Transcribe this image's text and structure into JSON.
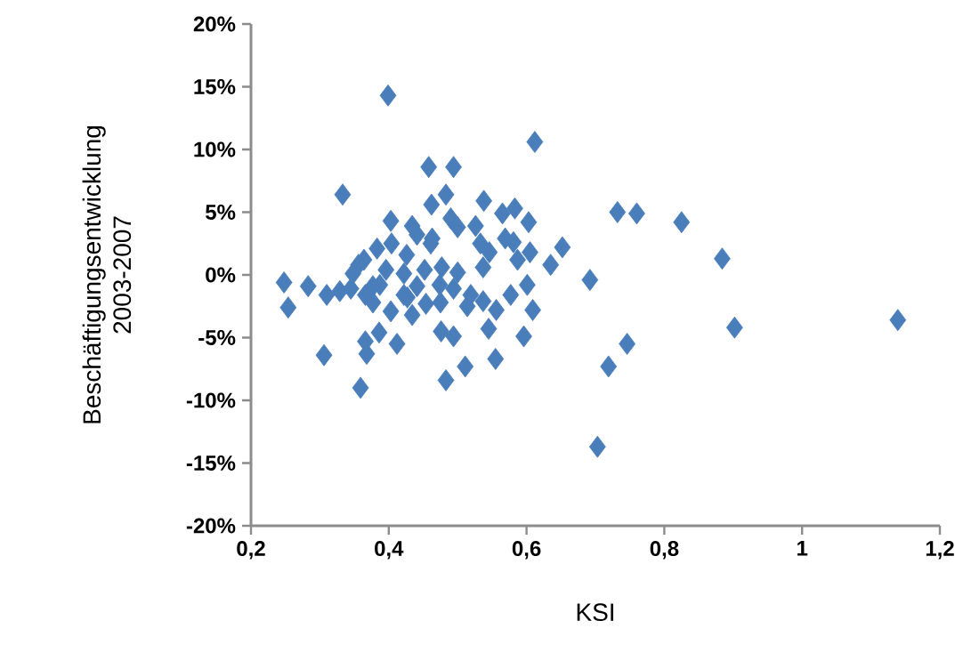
{
  "chart_data": {
    "type": "scatter",
    "xlabel": "KSI",
    "ylabel": "Beschäftigungsentwicklung 2003-2007",
    "x": [
      0.399,
      0.612,
      0.458,
      0.494,
      0.333,
      0.483,
      0.462,
      0.538,
      0.583,
      0.565,
      0.732,
      0.76,
      0.825,
      0.603,
      0.403,
      0.49,
      0.526,
      0.434,
      0.5,
      0.441,
      0.463,
      0.569,
      0.461,
      0.581,
      0.652,
      0.404,
      0.383,
      0.533,
      0.546,
      0.605,
      0.426,
      0.364,
      0.587,
      0.884,
      0.635,
      0.537,
      0.356,
      0.477,
      0.452,
      0.5,
      0.396,
      0.422,
      0.248,
      0.692,
      0.387,
      0.601,
      0.474,
      0.494,
      0.329,
      0.283,
      0.577,
      0.366,
      0.427,
      0.31,
      0.537,
      0.475,
      0.514,
      0.254,
      0.609,
      0.556,
      0.403,
      0.434,
      1.139,
      0.902,
      0.476,
      0.545,
      0.596,
      0.494,
      0.386,
      0.366,
      0.412,
      0.746,
      0.306,
      0.368,
      0.555,
      0.511,
      0.719,
      0.483,
      0.359,
      0.703,
      0.348,
      0.377,
      0.441,
      0.519,
      0.454,
      0.422,
      0.377,
      0.345
    ],
    "values": [
      14.3,
      10.6,
      8.6,
      8.6,
      6.4,
      6.4,
      5.6,
      5.9,
      5.3,
      4.9,
      5.0,
      4.9,
      4.2,
      4.2,
      4.3,
      4.5,
      3.9,
      3.9,
      3.8,
      3.2,
      2.9,
      2.9,
      2.5,
      2.6,
      2.2,
      2.5,
      2.1,
      2.5,
      1.8,
      1.8,
      1.6,
      1.2,
      1.2,
      1.3,
      0.8,
      0.6,
      0.8,
      0.6,
      0.4,
      0.2,
      0.4,
      0.1,
      -0.6,
      -0.4,
      -0.8,
      -0.8,
      -0.8,
      -1.1,
      -1.3,
      -0.9,
      -1.6,
      -1.6,
      -1.8,
      -1.6,
      -2.1,
      -2.2,
      -2.5,
      -2.6,
      -2.8,
      -2.8,
      -2.9,
      -3.2,
      -3.6,
      -4.2,
      -4.5,
      -4.3,
      -4.9,
      -4.9,
      -4.6,
      -5.3,
      -5.5,
      -5.5,
      -6.4,
      -6.3,
      -6.7,
      -7.3,
      -7.3,
      -8.4,
      -9.0,
      -13.7,
      0.1,
      -0.9,
      -0.9,
      -1.6,
      -2.3,
      -1.6,
      -2.2,
      -1.1
    ],
    "color": "#4a7ebb",
    "marker": "diamond",
    "xlim": [
      0.2,
      1.2
    ],
    "xticks": [
      {
        "value": 0.2,
        "label": "0,2"
      },
      {
        "value": 0.4,
        "label": "0,4"
      },
      {
        "value": 0.6,
        "label": "0,6"
      },
      {
        "value": 0.8,
        "label": "0,8"
      },
      {
        "value": 1,
        "label": "1"
      },
      {
        "value": 1.2,
        "label": "1,2"
      }
    ],
    "ylim": [
      -20,
      20
    ],
    "yticks": [
      {
        "value": -20,
        "label": "-20%"
      },
      {
        "value": -15,
        "label": "-15%"
      },
      {
        "value": -10,
        "label": "-10%"
      },
      {
        "value": -5,
        "label": "-5%"
      },
      {
        "value": 0,
        "label": "0%"
      },
      {
        "value": 5,
        "label": "5%"
      },
      {
        "value": 10,
        "label": "10%"
      },
      {
        "value": 15,
        "label": "15%"
      },
      {
        "value": 20,
        "label": "20%"
      }
    ]
  }
}
